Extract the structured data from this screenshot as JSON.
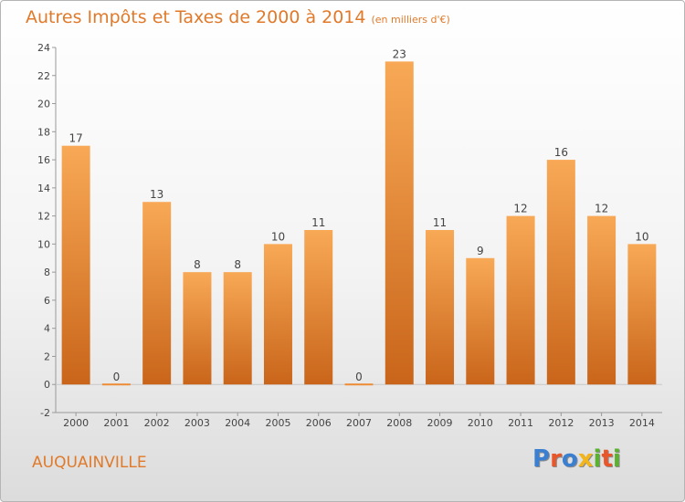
{
  "title": "Autres Impôts et Taxes de 2000 à 2014",
  "unit_note": "(en milliers d'€)",
  "commune": "AUQUAINVILLE",
  "logo": {
    "text": "Proxiti",
    "colors": [
      "#3a7fd0",
      "#e8562a",
      "#3a7fd0",
      "#f2b51c",
      "#5bb130",
      "#e8562a",
      "#5bb130"
    ]
  },
  "colors": {
    "bar": "#ee8b35",
    "bar_light": "#f8a956",
    "bar_dark": "#c9651a",
    "accent_text": "#e07a2a"
  },
  "chart_data": {
    "type": "bar",
    "categories": [
      "2000",
      "2001",
      "2002",
      "2003",
      "2004",
      "2005",
      "2006",
      "2007",
      "2008",
      "2009",
      "2010",
      "2011",
      "2012",
      "2013",
      "2014"
    ],
    "values": [
      17,
      0,
      13,
      8,
      8,
      10,
      11,
      0,
      23,
      11,
      9,
      12,
      16,
      12,
      10
    ],
    "ylim": [
      -2,
      24
    ],
    "yticks": [
      -2,
      0,
      2,
      4,
      6,
      8,
      10,
      12,
      14,
      16,
      18,
      20,
      22,
      24
    ],
    "grid": false
  }
}
